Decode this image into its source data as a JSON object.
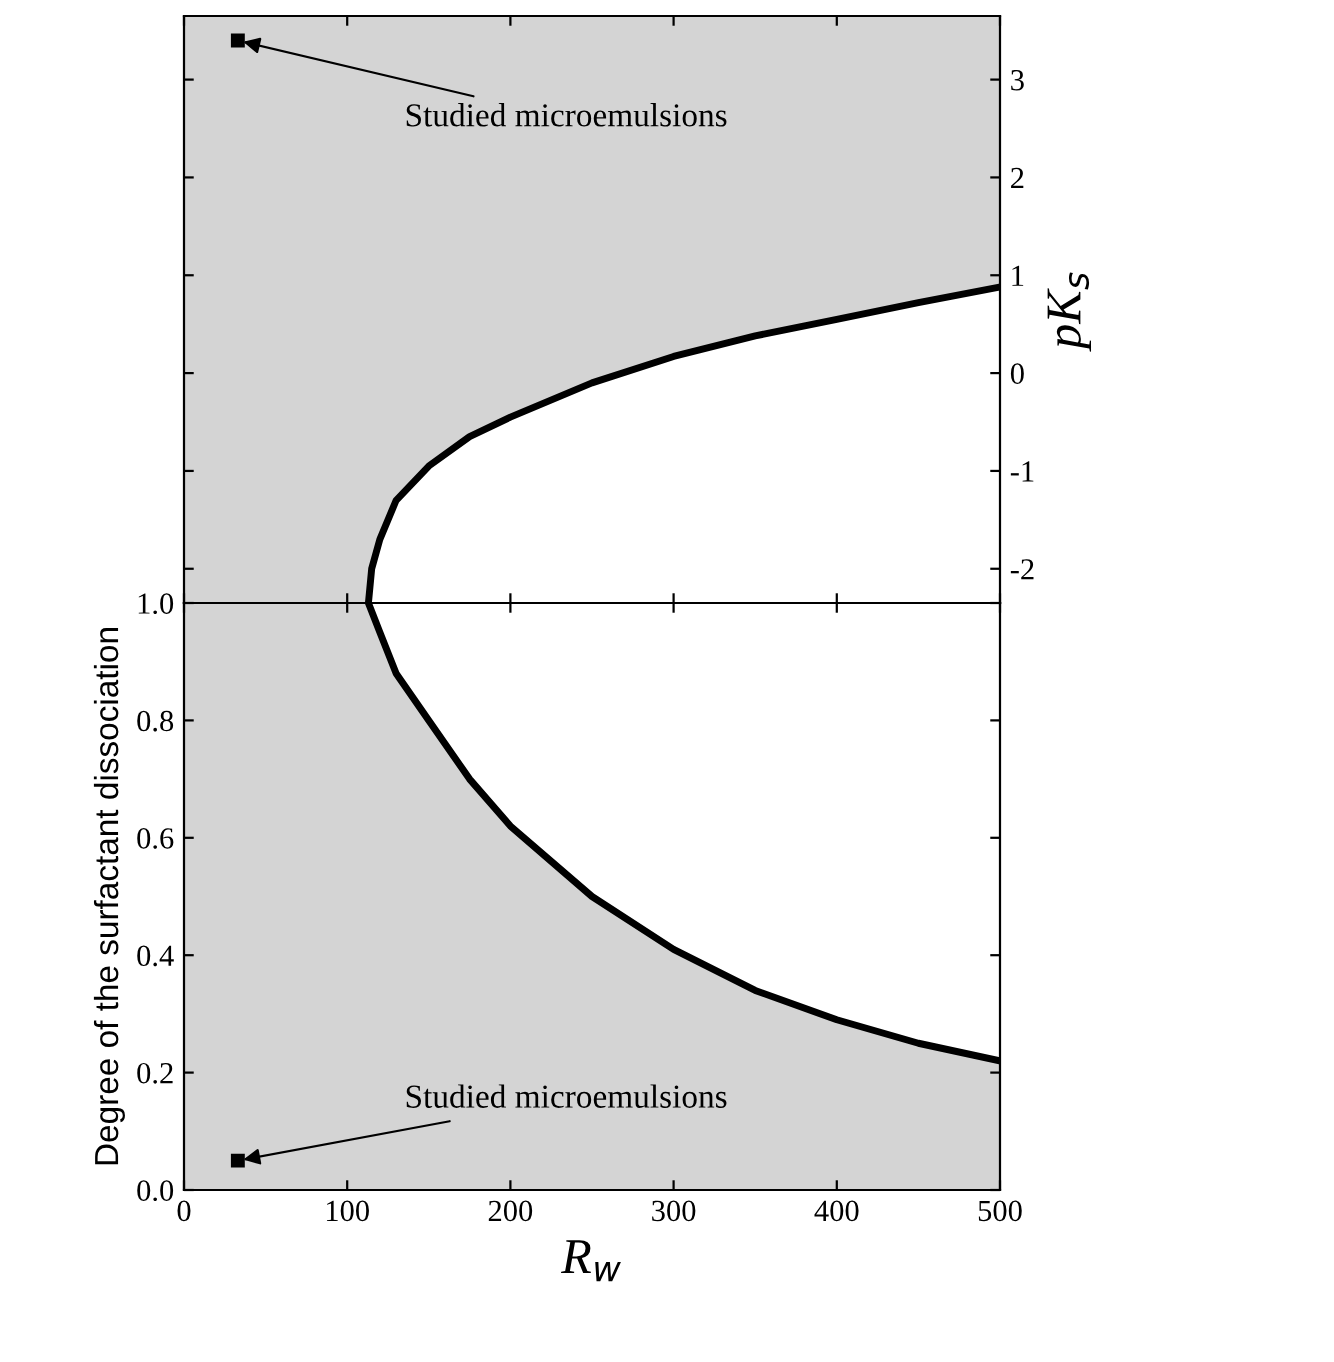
{
  "chart_data": [
    {
      "type": "line",
      "xlim": [
        0,
        500
      ],
      "xticks": [
        0,
        100,
        200,
        300,
        400,
        500
      ],
      "tick_labels": "y",
      "ylabel": "pK$_{s}$",
      "ylim": [
        -2.35,
        3.65
      ],
      "yticks": [
        {
          "value": -2,
          "label": "-2"
        },
        {
          "value": -1,
          "label": "-1"
        },
        0,
        1,
        2,
        3
      ],
      "series": [
        {
          "color": "#000000",
          "x": [
            113,
            115,
            120,
            130,
            150,
            175,
            200,
            250,
            300,
            350,
            400,
            450,
            500
          ],
          "values": [
            -2.35,
            -2.0,
            -1.7,
            -1.3,
            -0.95,
            -0.65,
            -0.45,
            -0.1,
            0.17,
            0.38,
            0.55,
            0.72,
            0.88
          ]
        },
        {
          "type": "scatter",
          "marker": "square",
          "color": "#000000",
          "x": [
            33
          ],
          "values": [
            3.4
          ]
        }
      ],
      "annotations": [
        {
          "text": "Studied microemulsions",
          "x": 33,
          "y": 3.4
        }
      ]
    },
    {
      "type": "line",
      "xlim": [
        0,
        500
      ],
      "xticks": [
        0,
        100,
        200,
        300,
        400,
        500
      ],
      "ylim": [
        0,
        1.0
      ],
      "yticks": [
        {
          "value": 0,
          "label": "0.0"
        },
        0.2,
        0.4,
        0.6,
        0.8,
        {
          "value": 1.0,
          "label": "1.0"
        }
      ],
      "xlabel": "R$_{w}$",
      "ylabel": "Degree of the surfactant dissociation",
      "series": [
        {
          "color": "#000000",
          "x": [
            113,
            120,
            130,
            150,
            175,
            200,
            250,
            300,
            350,
            400,
            450,
            500
          ],
          "values": [
            1.0,
            0.95,
            0.88,
            0.8,
            0.7,
            0.62,
            0.5,
            0.41,
            0.34,
            0.29,
            0.25,
            0.22
          ]
        },
        {
          "type": "scatter",
          "marker": "square",
          "color": "#000000",
          "x": [
            33
          ],
          "values": [
            0.05
          ]
        }
      ],
      "annotations": [
        {
          "text": "Studied microemulsions",
          "x": 33,
          "y": 0.05
        }
      ]
    }
  ]
}
